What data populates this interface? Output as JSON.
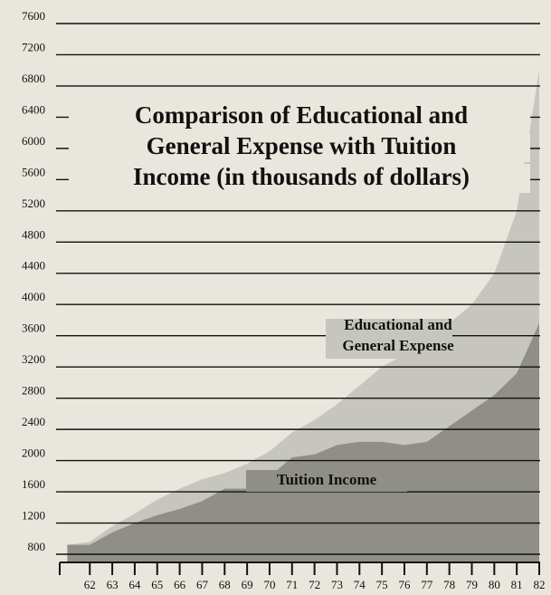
{
  "chart_data": {
    "type": "area",
    "title": [
      "Comparison of Educational and",
      "General Expense with Tuition",
      "Income (in thousands of dollars)"
    ],
    "annotations": [
      "Educational and",
      "General Expense",
      "Tuition Income"
    ],
    "x": [
      61,
      62,
      63,
      64,
      65,
      66,
      67,
      68,
      69,
      70,
      71,
      72,
      73,
      74,
      75,
      76,
      77,
      78,
      79,
      80,
      81,
      82
    ],
    "series": [
      {
        "name": "Educational and General Expense",
        "color": "#c6c5be",
        "values": [
          920,
          960,
          1160,
          1320,
          1500,
          1640,
          1760,
          1840,
          1960,
          2120,
          2360,
          2520,
          2720,
          2960,
          3200,
          3360,
          3520,
          3760,
          4000,
          4400,
          5200,
          7000
        ]
      },
      {
        "name": "Tuition Income",
        "color": "#8f8e87",
        "values": [
          920,
          920,
          1080,
          1200,
          1300,
          1380,
          1480,
          1640,
          1640,
          1800,
          2040,
          2080,
          2200,
          2240,
          2240,
          2200,
          2240,
          2440,
          2640,
          2840,
          3120,
          3760
        ]
      }
    ],
    "xlim": [
      60.5,
      82
    ],
    "xticks": [
      62,
      63,
      64,
      65,
      66,
      67,
      68,
      69,
      70,
      71,
      72,
      73,
      74,
      75,
      76,
      77,
      78,
      79,
      80,
      81,
      82
    ],
    "ylim": [
      800,
      7600
    ],
    "yticks": [
      800,
      1200,
      1600,
      2000,
      2400,
      2800,
      3200,
      3600,
      4000,
      4400,
      4800,
      5200,
      5600,
      6000,
      6400,
      6800,
      7200,
      7600
    ],
    "grid": true
  }
}
